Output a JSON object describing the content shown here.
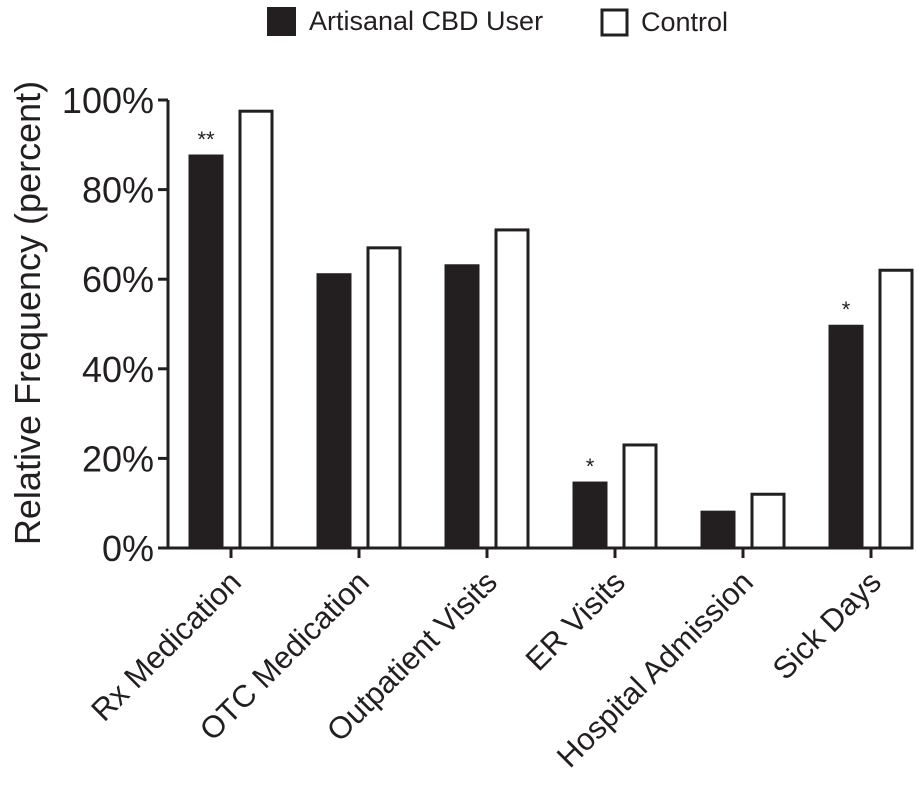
{
  "chart_data": {
    "type": "bar",
    "title": "",
    "xlabel": "",
    "ylabel": "Relative Frequency (percent)",
    "ylim": [
      0,
      100
    ],
    "yticks": [
      0,
      20,
      40,
      60,
      80,
      100
    ],
    "ytick_labels": [
      "0%",
      "20%",
      "40%",
      "60%",
      "80%",
      "100%"
    ],
    "categories": [
      "Rx Medication",
      "OTC Medication",
      "Outpatient Visits",
      "ER Visits",
      "Hospital Admission",
      "Sick Days"
    ],
    "series": [
      {
        "name": "Artisanal CBD User",
        "values": [
          87.5,
          61,
          63,
          14.5,
          8,
          49.5
        ],
        "color": "#231f20"
      },
      {
        "name": "Control",
        "values": [
          97.5,
          67,
          71,
          23,
          12,
          62
        ],
        "color": "#ffffff"
      }
    ],
    "annotations": [
      "**",
      "",
      "",
      "*",
      "",
      "*"
    ],
    "legend": "top-center",
    "grid": false
  }
}
